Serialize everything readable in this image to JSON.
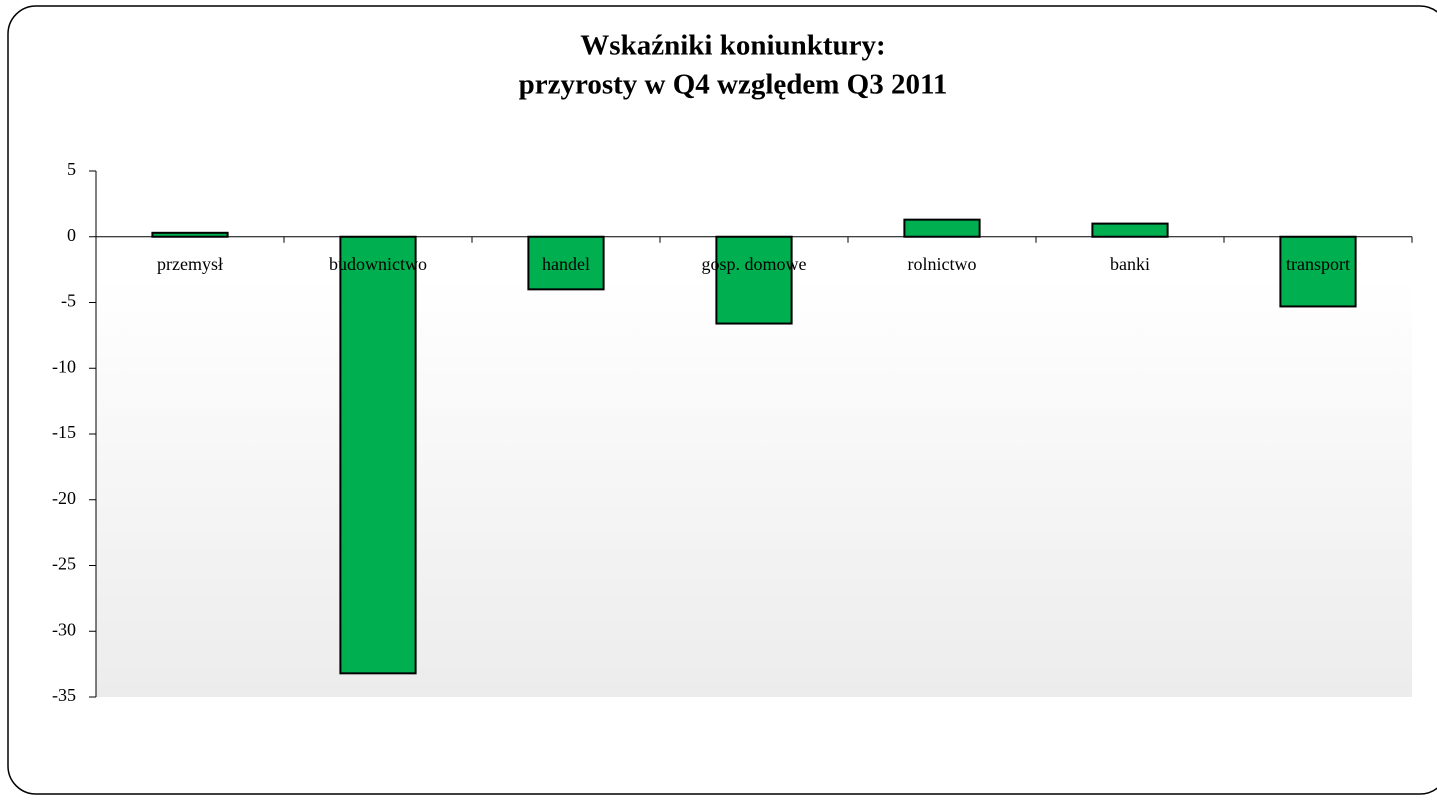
{
  "chart_data": {
    "type": "bar",
    "title": [
      "Wskaźniki koniunktury:",
      "przyrosty w Q4 względem Q3 2011"
    ],
    "categories": [
      "przemysł",
      "budownictwo",
      "handel",
      "gosp. domowe",
      "rolnictwo",
      "banki",
      "transport"
    ],
    "values": [
      0.3,
      -33.2,
      -4,
      -6.6,
      1.3,
      1.0,
      -5.3
    ],
    "color": "#00b050",
    "ylim": [
      -35,
      5
    ],
    "yticks": [
      -35,
      -30,
      -25,
      -20,
      -15,
      -10,
      -5,
      0,
      5
    ],
    "grid": false
  }
}
